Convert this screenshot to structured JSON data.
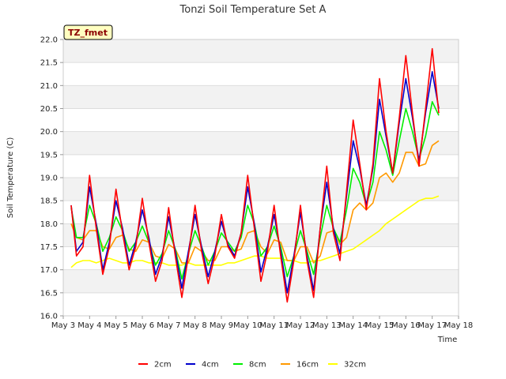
{
  "chart_data": {
    "type": "line",
    "title": "Tonzi Soil Temperature Set A",
    "xlabel": "Time",
    "ylabel": "Soil Temperature (C)",
    "site_badge": "TZ_fmet",
    "x_ticks": [
      "May 3",
      "May 4",
      "May 5",
      "May 6",
      "May 7",
      "May 8",
      "May 9",
      "May 10",
      "May 11",
      "May 12",
      "May 13",
      "May 14",
      "May 15",
      "May 16",
      "May 17",
      "May 18"
    ],
    "y_ticks": [
      "16.0",
      "16.5",
      "17.0",
      "17.5",
      "18.0",
      "18.5",
      "19.0",
      "19.5",
      "20.0",
      "20.5",
      "21.0",
      "21.5",
      "22.0"
    ],
    "xlim_days": [
      3,
      18
    ],
    "ylim": [
      16.0,
      22.0
    ],
    "grid": "horizontal bands",
    "legend_position": "bottom",
    "x_day_values": [
      3.3,
      3.5,
      3.75,
      4.0,
      4.25,
      4.5,
      4.75,
      5.0,
      5.25,
      5.5,
      5.75,
      6.0,
      6.25,
      6.5,
      6.75,
      7.0,
      7.25,
      7.5,
      7.75,
      8.0,
      8.25,
      8.5,
      8.75,
      9.0,
      9.25,
      9.5,
      9.75,
      10.0,
      10.25,
      10.5,
      10.75,
      11.0,
      11.25,
      11.5,
      11.75,
      12.0,
      12.25,
      12.5,
      12.75,
      13.0,
      13.25,
      13.5,
      13.75,
      14.0,
      14.25,
      14.5,
      14.75,
      15.0,
      15.25,
      15.5,
      15.75,
      16.0,
      16.25,
      16.5,
      16.75,
      17.0,
      17.25
    ],
    "series": [
      {
        "name": "2cm",
        "color": "#ff0000",
        "values": [
          18.4,
          17.3,
          17.5,
          19.05,
          17.9,
          16.9,
          17.5,
          18.75,
          17.8,
          17.0,
          17.5,
          18.55,
          17.6,
          16.75,
          17.2,
          18.35,
          17.3,
          16.4,
          17.3,
          18.4,
          17.4,
          16.7,
          17.3,
          18.2,
          17.5,
          17.25,
          17.8,
          19.05,
          17.9,
          16.75,
          17.4,
          18.4,
          17.3,
          16.3,
          17.2,
          18.4,
          17.2,
          16.4,
          17.9,
          19.25,
          17.8,
          17.2,
          18.7,
          20.25,
          19.3,
          18.3,
          19.3,
          21.15,
          20.0,
          19.1,
          20.3,
          21.65,
          20.4,
          19.25,
          20.5,
          21.8,
          20.4
        ]
      },
      {
        "name": "4cm",
        "color": "#0000cc",
        "values": [
          18.4,
          17.4,
          17.6,
          18.8,
          18.0,
          17.0,
          17.6,
          18.5,
          17.9,
          17.1,
          17.6,
          18.3,
          17.7,
          16.9,
          17.3,
          18.15,
          17.4,
          16.6,
          17.4,
          18.2,
          17.5,
          16.85,
          17.4,
          18.05,
          17.55,
          17.3,
          17.8,
          18.8,
          18.0,
          16.95,
          17.5,
          18.2,
          17.4,
          16.5,
          17.3,
          18.25,
          17.3,
          16.55,
          17.9,
          18.9,
          17.9,
          17.35,
          18.6,
          19.8,
          19.2,
          18.4,
          19.2,
          20.7,
          19.9,
          19.1,
          20.2,
          21.15,
          20.3,
          19.35,
          20.4,
          21.3,
          20.5
        ]
      },
      {
        "name": "8cm",
        "color": "#00ee00",
        "values": [
          18.35,
          17.7,
          17.7,
          18.4,
          18.0,
          17.4,
          17.7,
          18.15,
          17.85,
          17.4,
          17.6,
          17.95,
          17.6,
          17.1,
          17.35,
          17.85,
          17.45,
          16.8,
          17.35,
          17.85,
          17.5,
          17.1,
          17.4,
          17.8,
          17.6,
          17.4,
          17.7,
          18.4,
          18.0,
          17.3,
          17.5,
          17.95,
          17.5,
          16.85,
          17.3,
          17.85,
          17.4,
          16.9,
          17.7,
          18.4,
          17.9,
          17.6,
          18.3,
          19.2,
          18.9,
          18.4,
          18.9,
          20.0,
          19.6,
          19.05,
          19.8,
          20.5,
          20.0,
          19.4,
          19.9,
          20.65,
          20.35
        ]
      },
      {
        "name": "16cm",
        "color": "#ff9900",
        "values": [
          18.0,
          17.7,
          17.65,
          17.85,
          17.85,
          17.5,
          17.45,
          17.7,
          17.75,
          17.45,
          17.4,
          17.65,
          17.6,
          17.3,
          17.25,
          17.55,
          17.45,
          17.15,
          17.15,
          17.5,
          17.4,
          17.2,
          17.2,
          17.5,
          17.5,
          17.4,
          17.45,
          17.8,
          17.85,
          17.5,
          17.35,
          17.65,
          17.6,
          17.2,
          17.2,
          17.5,
          17.5,
          17.15,
          17.3,
          17.8,
          17.85,
          17.55,
          17.7,
          18.3,
          18.45,
          18.3,
          18.45,
          19.0,
          19.1,
          18.9,
          19.1,
          19.55,
          19.55,
          19.25,
          19.3,
          19.7,
          19.8
        ]
      },
      {
        "name": "32cm",
        "color": "#ffff00",
        "values": [
          17.05,
          17.15,
          17.2,
          17.2,
          17.15,
          17.2,
          17.25,
          17.2,
          17.15,
          17.15,
          17.2,
          17.2,
          17.15,
          17.15,
          17.15,
          17.1,
          17.1,
          17.1,
          17.15,
          17.1,
          17.1,
          17.1,
          17.1,
          17.1,
          17.15,
          17.15,
          17.2,
          17.25,
          17.3,
          17.3,
          17.25,
          17.25,
          17.25,
          17.2,
          17.2,
          17.15,
          17.15,
          17.2,
          17.2,
          17.25,
          17.3,
          17.35,
          17.4,
          17.45,
          17.55,
          17.65,
          17.75,
          17.85,
          18.0,
          18.1,
          18.2,
          18.3,
          18.4,
          18.5,
          18.55,
          18.55,
          18.6
        ]
      }
    ]
  }
}
